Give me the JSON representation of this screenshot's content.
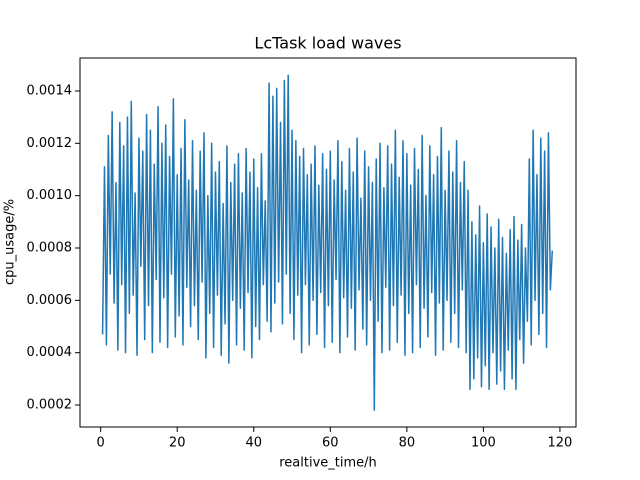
{
  "chart_data": {
    "type": "line",
    "title": "LcTask load waves",
    "xlabel": "realtive_time/h",
    "ylabel": "cpu_usage/%",
    "xlim": [
      -5.4,
      124.2
    ],
    "ylim": [
      0.000116,
      0.001526
    ],
    "xticks": [
      0,
      20,
      40,
      60,
      80,
      100,
      120
    ],
    "yticks": [
      0.0002,
      0.0004,
      0.0006,
      0.0008,
      {
        "value": 0.001,
        "label": "0.0010"
      },
      0.0012,
      0.0014
    ],
    "x": [
      0.5,
      1,
      1.5,
      2,
      2.5,
      3,
      3.5,
      4,
      4.5,
      5,
      5.5,
      6,
      6.5,
      7,
      7.5,
      8,
      8.5,
      9,
      9.5,
      10,
      10.5,
      11,
      11.5,
      12,
      12.5,
      13,
      13.5,
      14,
      14.5,
      15,
      15.5,
      16,
      16.5,
      17,
      17.5,
      18,
      18.5,
      19,
      19.5,
      20,
      20.5,
      21,
      21.5,
      22,
      22.5,
      23,
      23.5,
      24,
      24.5,
      25,
      25.5,
      26,
      26.5,
      27,
      27.5,
      28,
      28.5,
      29,
      29.5,
      30,
      30.5,
      31,
      31.5,
      32,
      32.5,
      33,
      33.5,
      34,
      34.5,
      35,
      35.5,
      36,
      36.5,
      37,
      37.5,
      38,
      38.5,
      39,
      39.5,
      40,
      40.5,
      41,
      41.5,
      42,
      42.5,
      43,
      43.5,
      44,
      44.5,
      45,
      45.5,
      46,
      46.5,
      47,
      47.5,
      48,
      48.5,
      49,
      49.5,
      50,
      50.5,
      51,
      51.5,
      52,
      52.5,
      53,
      53.5,
      54,
      54.5,
      55,
      55.5,
      56,
      56.5,
      57,
      57.5,
      58,
      58.5,
      59,
      59.5,
      60,
      60.5,
      61,
      61.5,
      62,
      62.5,
      63,
      63.5,
      64,
      64.5,
      65,
      65.5,
      66,
      66.5,
      67,
      67.5,
      68,
      68.5,
      69,
      69.5,
      70,
      70.5,
      71,
      71.5,
      72,
      72.5,
      73,
      73.5,
      74,
      74.5,
      75,
      75.5,
      76,
      76.5,
      77,
      77.5,
      78,
      78.5,
      79,
      79.5,
      80,
      80.5,
      81,
      81.5,
      82,
      82.5,
      83,
      83.5,
      84,
      84.5,
      85,
      85.5,
      86,
      86.5,
      87,
      87.5,
      88,
      88.5,
      89,
      89.5,
      90,
      90.5,
      91,
      91.5,
      92,
      92.5,
      93,
      93.5,
      94,
      94.5,
      95,
      95.5,
      96,
      96.5,
      97,
      97.5,
      98,
      98.5,
      99,
      99.5,
      100,
      100.5,
      101,
      101.5,
      102,
      102.5,
      103,
      103.5,
      104,
      104.5,
      105,
      105.5,
      106,
      106.5,
      107,
      107.5,
      108,
      108.5,
      109,
      109.5,
      110,
      110.5,
      111,
      111.5,
      112,
      112.5,
      113,
      113.5,
      114,
      114.5,
      115,
      115.5,
      116,
      116.5,
      117,
      117.5,
      118
    ],
    "series": [
      {
        "color": "#1f77b4",
        "values": [
          0.00047,
          0.00111,
          0.00043,
          0.00123,
          0.0007,
          0.00132,
          0.00059,
          0.00105,
          0.00041,
          0.00128,
          0.00066,
          0.00119,
          0.0004,
          0.0013,
          0.00055,
          0.00136,
          0.00062,
          0.00101,
          0.00039,
          0.00122,
          0.00073,
          0.00117,
          0.00045,
          0.00131,
          0.00058,
          0.00125,
          0.0004,
          0.00112,
          0.00068,
          0.00134,
          0.00044,
          0.0012,
          0.00061,
          0.00127,
          0.00042,
          0.00115,
          0.0007,
          0.00137,
          0.00046,
          0.00108,
          0.00054,
          0.00118,
          0.00043,
          0.00129,
          0.00065,
          0.00106,
          0.0005,
          0.00121,
          0.00058,
          0.00102,
          0.00045,
          0.00117,
          0.00067,
          0.00124,
          0.00038,
          0.001,
          0.00055,
          0.0012,
          0.00042,
          0.00109,
          0.00062,
          0.00113,
          0.00039,
          0.00097,
          0.00051,
          0.00119,
          0.00036,
          0.00105,
          0.0006,
          0.00112,
          0.00043,
          0.00116,
          0.00057,
          0.00101,
          0.00041,
          0.00118,
          0.00063,
          0.00109,
          0.00038,
          0.00114,
          0.0005,
          0.00103,
          0.00045,
          0.00116,
          0.00066,
          0.00098,
          0.00052,
          0.00143,
          0.00048,
          0.00138,
          0.00059,
          0.00141,
          0.00067,
          0.00128,
          0.00051,
          0.00144,
          0.0007,
          0.00146,
          0.00055,
          0.00125,
          0.00045,
          0.00121,
          0.00062,
          0.00115,
          0.0004,
          0.00118,
          0.00066,
          0.00108,
          0.00043,
          0.00112,
          0.0006,
          0.00119,
          0.00047,
          0.00104,
          0.00063,
          0.00116,
          0.00042,
          0.0011,
          0.00058,
          0.00117,
          0.00044,
          0.00106,
          0.00068,
          0.00121,
          0.0004,
          0.00113,
          0.00061,
          0.00102,
          0.00046,
          0.00118,
          0.00057,
          0.00109,
          0.00041,
          0.00122,
          0.00064,
          0.00099,
          0.00049,
          0.00117,
          0.00043,
          0.00111,
          0.0006,
          0.00105,
          0.00018,
          0.00114,
          0.00052,
          0.0012,
          0.0004,
          0.00103,
          0.00065,
          0.00119,
          0.00041,
          0.00112,
          0.00058,
          0.00125,
          0.00044,
          0.00107,
          0.00062,
          0.00121,
          0.00039,
          0.00116,
          0.00055,
          0.00104,
          0.0004,
          0.00118,
          0.00066,
          0.0011,
          0.00042,
          0.00123,
          0.00057,
          0.001,
          0.00046,
          0.00119,
          0.00063,
          0.00108,
          0.00039,
          0.00115,
          0.00059,
          0.00126,
          0.00041,
          0.00102,
          0.0006,
          0.00117,
          0.00044,
          0.00109,
          0.00055,
          0.00121,
          0.00042,
          0.00105,
          0.00064,
          0.00113,
          0.0004,
          0.00102,
          0.00026,
          0.0009,
          0.0003,
          0.00085,
          0.00038,
          0.00096,
          0.00027,
          0.00082,
          0.00035,
          0.00093,
          0.00026,
          0.00088,
          0.0004,
          0.0008,
          0.00028,
          0.00091,
          0.00033,
          0.00084,
          0.00026,
          0.00078,
          0.00041,
          0.00087,
          0.0003,
          0.00092,
          0.00026,
          0.00083,
          0.00045,
          0.00089,
          0.00036,
          0.0008,
          0.00052,
          0.00114,
          0.00043,
          0.00125,
          0.0006,
          0.00108,
          0.00047,
          0.00122,
          0.00055,
          0.00117,
          0.00042,
          0.00124,
          0.00064,
          0.00079
        ]
      }
    ]
  }
}
